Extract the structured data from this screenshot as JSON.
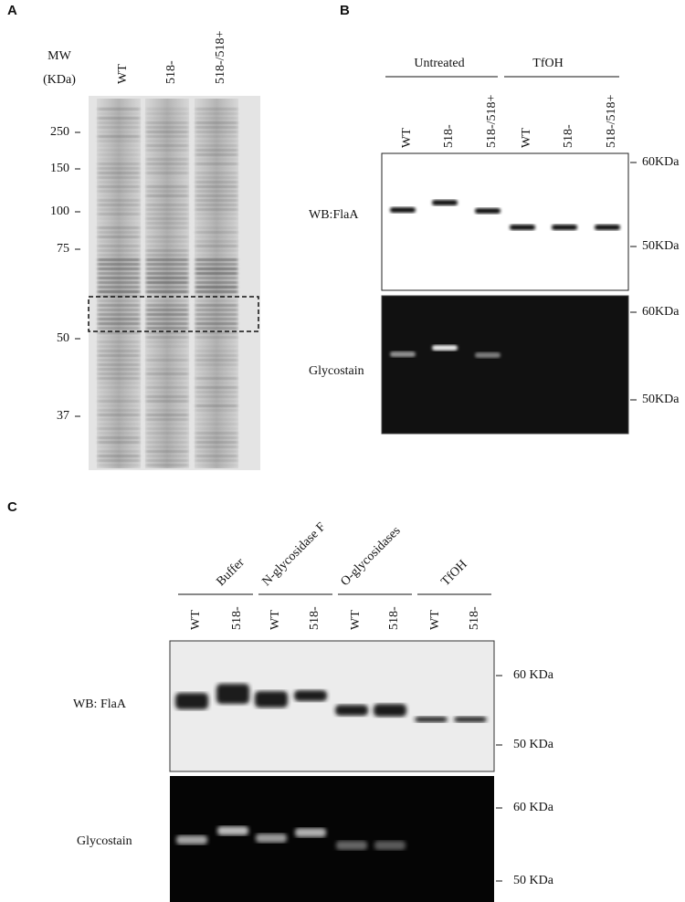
{
  "panels": [
    {
      "label": "A",
      "header": [
        "MW",
        "(KDa)"
      ],
      "lanes": [
        "WT",
        "518-",
        "518-/518+"
      ],
      "markers": [
        "250",
        "150",
        "100",
        "75",
        "50",
        "37"
      ]
    },
    {
      "label": "B",
      "groups": [
        "Untreated",
        "TfOH"
      ],
      "lanes": [
        "WT",
        "518-",
        "518-/518+",
        "WT",
        "518-",
        "518-/518+"
      ],
      "rows": [
        {
          "label": "WB:FlaA",
          "markers": [
            "60KDa",
            "50KDa"
          ]
        },
        {
          "label": "Glycostain",
          "markers": [
            "60KDa",
            "50KDa"
          ]
        }
      ]
    },
    {
      "label": "C",
      "groups": [
        "Buffer",
        "N-glycosidase F",
        "O-glycosidases",
        "TfOH"
      ],
      "lanes": [
        "WT",
        "518-",
        "WT",
        "518-",
        "WT",
        "518-",
        "WT",
        "518-"
      ],
      "rows": [
        {
          "label": "WB: FlaA",
          "markers": [
            "60 KDa",
            "50 KDa"
          ]
        },
        {
          "label": "Glycostain",
          "markers": [
            "60 KDa",
            "50 KDa"
          ]
        }
      ]
    }
  ]
}
